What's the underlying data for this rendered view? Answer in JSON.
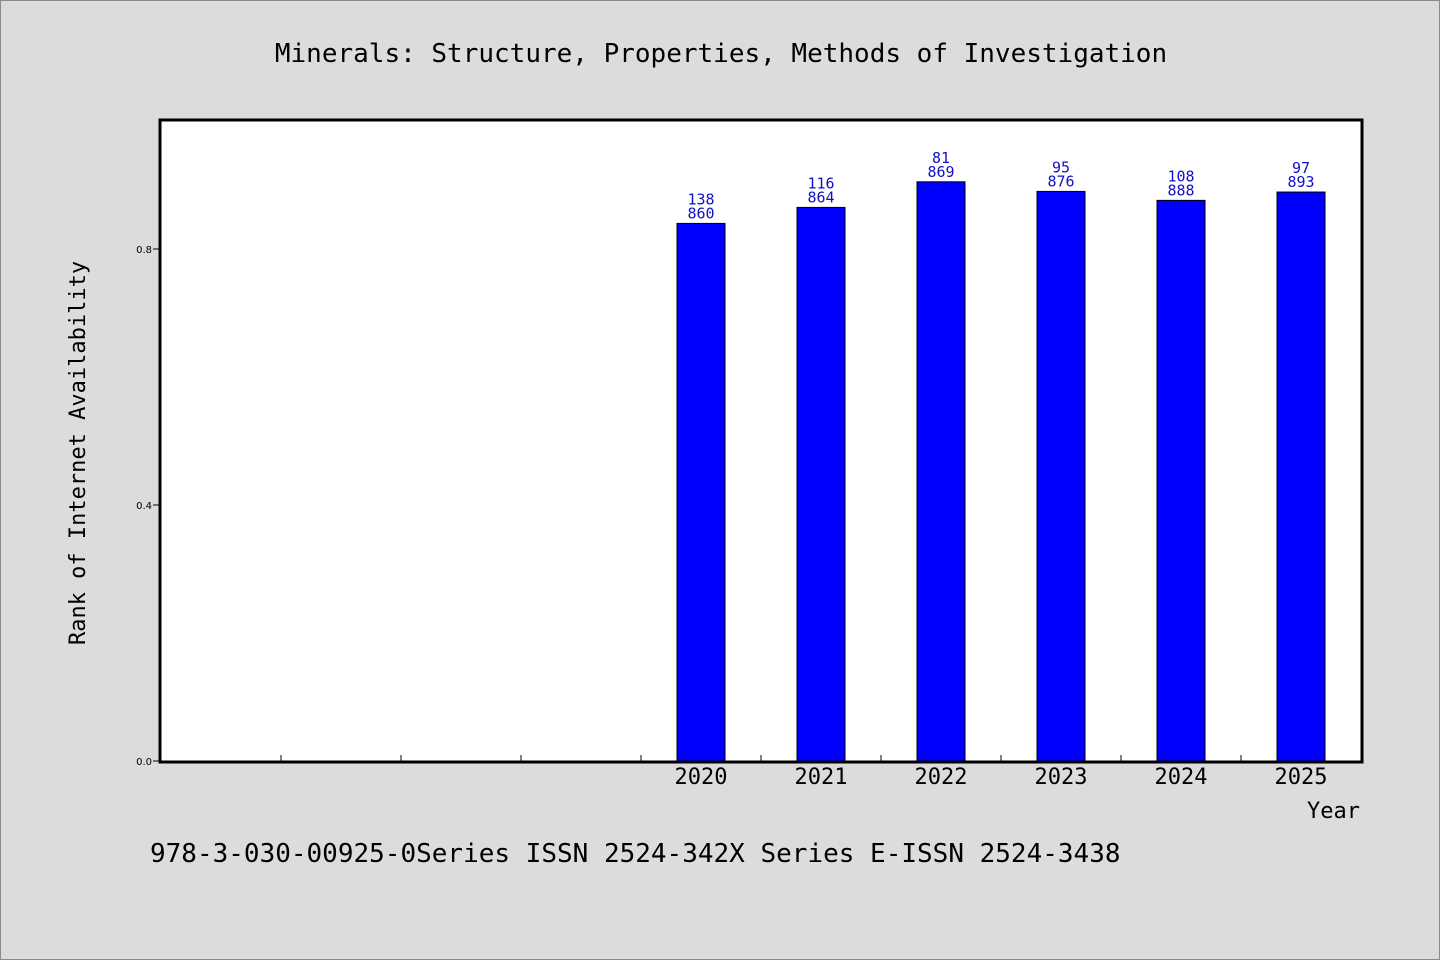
{
  "colors": {
    "background": "#dcdcdc",
    "plot_background": "#ffffff",
    "bar": "#0000ff",
    "bar_label": "#1010c8",
    "axis": "#000000"
  },
  "footer": "978-3-030-00925-0Series ISSN 2524-342X Series E-ISSN 2524-3438",
  "chart_data": {
    "type": "bar",
    "title": "Minerals: Structure, Properties, Methods of Investigation",
    "xlabel": "Year",
    "ylabel": "Rank of Internet Availability",
    "ylim": [
      0,
      1.0
    ],
    "yticks": [
      "0.0",
      "0.4",
      "0.8"
    ],
    "ytick_values": [
      0.0,
      0.4,
      0.8
    ],
    "category_slots": 10,
    "categories": [
      "2020",
      "2021",
      "2022",
      "2023",
      "2024",
      "2025"
    ],
    "first_category_slot": 4,
    "values": [
      0.84,
      0.865,
      0.905,
      0.89,
      0.876,
      0.889
    ],
    "labels_top": [
      "138",
      "116",
      "81",
      "95",
      "108",
      "97"
    ],
    "labels_bottom": [
      "860",
      "864",
      "869",
      "876",
      "888",
      "893"
    ],
    "grid": false,
    "legend": "none"
  }
}
